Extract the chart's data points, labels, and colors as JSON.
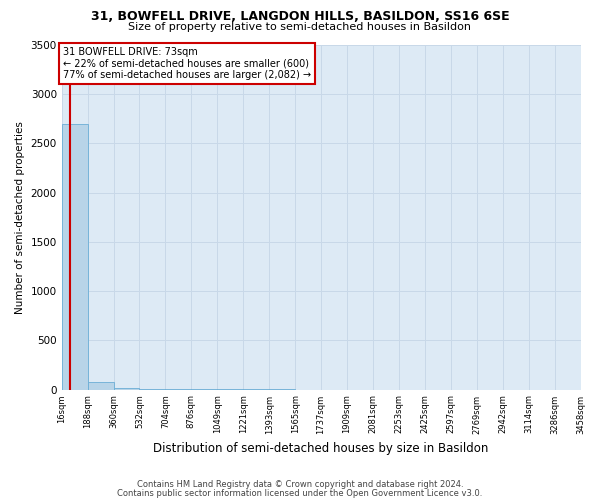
{
  "title": "31, BOWFELL DRIVE, LANGDON HILLS, BASILDON, SS16 6SE",
  "subtitle": "Size of property relative to semi-detached houses in Basildon",
  "xlabel": "Distribution of semi-detached houses by size in Basildon",
  "ylabel": "Number of semi-detached properties",
  "footnote1": "Contains HM Land Registry data © Crown copyright and database right 2024.",
  "footnote2": "Contains public sector information licensed under the Open Government Licence v3.0.",
  "property_size": 73,
  "annotation_text1": "31 BOWFELL DRIVE: 73sqm",
  "annotation_text2": "← 22% of semi-detached houses are smaller (600)",
  "annotation_text3": "77% of semi-detached houses are larger (2,082) →",
  "bin_edges": [
    16,
    188,
    360,
    532,
    704,
    876,
    1049,
    1221,
    1393,
    1565,
    1737,
    1909,
    2081,
    2253,
    2425,
    2597,
    2769,
    2942,
    3114,
    3286,
    3458
  ],
  "bin_labels": [
    "16sqm",
    "188sqm",
    "360sqm",
    "532sqm",
    "704sqm",
    "876sqm",
    "1049sqm",
    "1221sqm",
    "1393sqm",
    "1565sqm",
    "1737sqm",
    "1909sqm",
    "2081sqm",
    "2253sqm",
    "2425sqm",
    "2597sqm",
    "2769sqm",
    "2942sqm",
    "3114sqm",
    "3286sqm",
    "3458sqm"
  ],
  "bar_heights": [
    2700,
    80,
    15,
    8,
    5,
    3,
    2,
    1,
    1,
    0,
    0,
    0,
    0,
    0,
    0,
    0,
    0,
    0,
    0,
    0
  ],
  "bar_color": "#b8d4e8",
  "bar_edge_color": "#6baed6",
  "grid_color": "#c8d8e8",
  "background_color": "#ddeaf5",
  "red_line_color": "#cc0000",
  "annotation_box_color": "#cc0000",
  "ylim": [
    0,
    3500
  ],
  "yticks": [
    0,
    500,
    1000,
    1500,
    2000,
    2500,
    3000,
    3500
  ]
}
